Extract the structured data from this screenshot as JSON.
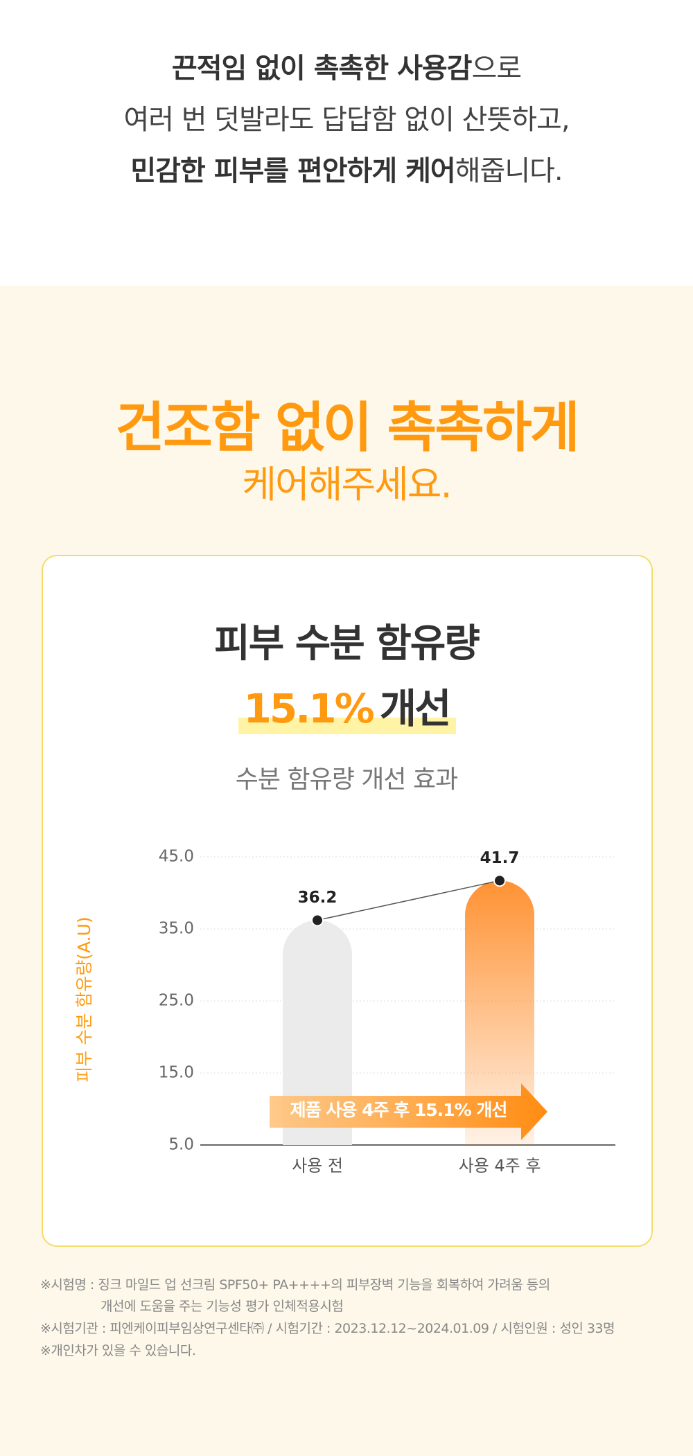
{
  "intro": {
    "lines": [
      [
        "끈적임 없이 촉촉한 사용감",
        "으로"
      ],
      [
        "여러 번 덧발라도 답답함 없이 산뜻하고,"
      ],
      [
        "민감한 피부를 편안하게 케어",
        "해줍니다."
      ]
    ]
  },
  "section": {
    "heading": "건조함 없이 촉촉하게",
    "subheading": "케어해주세요."
  },
  "card": {
    "title": "피부 수분 함유량",
    "highlight": "15.1%",
    "highlight_suffix": "개선"
  },
  "chart_data": {
    "type": "bar",
    "title": "수분 함유량 개선 효과",
    "y_label": "피부 수분 함유량(A.U)",
    "categories": [
      "사용 전",
      "사용 4주 후"
    ],
    "values": [
      36.2,
      41.7
    ],
    "colors": [
      "#ebebeb",
      "#ff9233"
    ],
    "ylim": [
      5,
      45
    ],
    "yticks": [
      {
        "value": 5,
        "label": "5.0"
      },
      {
        "value": 15,
        "label": "15.0"
      },
      {
        "value": 25,
        "label": "25.0"
      },
      {
        "value": 35,
        "label": "35.0"
      },
      {
        "value": 45,
        "label": "45.0"
      }
    ],
    "grid": true,
    "annotation": "제품 사용 4주 후 15.1% 개선"
  },
  "notes": [
    "※시험명 : 징크 마일드 업 선크림 SPF50+ PA++++의 피부장벽 기능을 회복하여 가려움 등의",
    "개선에 도움을 주는 기능성 평가 인체적용시험",
    "※시험기관 : 피엔케이피부임상연구센타㈜ / 시험기간 : 2023.12.12~2024.01.09 / 시험인원 : 성인 33명",
    "※개인차가 있을 수 있습니다."
  ]
}
